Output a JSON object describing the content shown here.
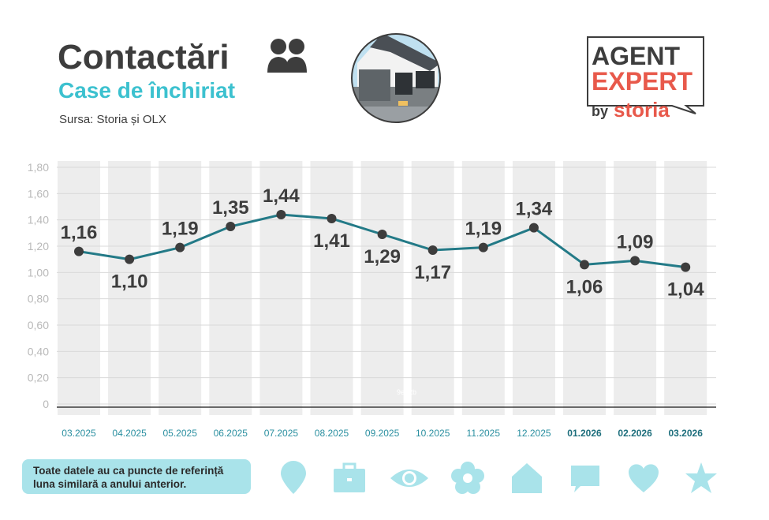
{
  "header": {
    "title": "Contactări",
    "subtitle": "Case de închiriat",
    "source": "Sursa: Storia și OLX"
  },
  "logo": {
    "line1": "AGENT",
    "line2": "EXPERT",
    "by": "by",
    "brand": "storia"
  },
  "note": "Toate datele au ca puncte de referință luna similară a anului anterior.",
  "watermark": "9e. 2b",
  "colors": {
    "title": "#3d3d3d",
    "subtitle": "#3cc1cf",
    "line": "#237a87",
    "dot": "#3d3d3d",
    "band": "#ededed",
    "axis_label": "#b9b9b9",
    "month_label": "#2a8fa0",
    "icon": "#a9e3ea",
    "logo_accent": "#e8594b"
  },
  "icons": [
    "location-pin-icon",
    "briefcase-icon",
    "eye-icon",
    "flower-icon",
    "house-icon",
    "chat-bubble-icon",
    "heart-icon",
    "star-icon"
  ],
  "chart_data": {
    "type": "line",
    "categories": [
      "03.2025",
      "04.2025",
      "05.2025",
      "06.2025",
      "07.2025",
      "08.2025",
      "09.2025",
      "10.2025",
      "11.2025",
      "12.2025",
      "01.2026",
      "02.2026",
      "03.2026"
    ],
    "bold_categories": [
      "01.2026",
      "02.2026",
      "03.2026"
    ],
    "values": [
      1.16,
      1.1,
      1.19,
      1.35,
      1.44,
      1.41,
      1.29,
      1.17,
      1.19,
      1.34,
      1.06,
      1.09,
      1.04
    ],
    "value_labels": [
      "1,16",
      "1,10",
      "1,19",
      "1,35",
      "1,44",
      "1,41",
      "1,29",
      "1,17",
      "1,19",
      "1,34",
      "1,06",
      "1,09",
      "1,04"
    ],
    "label_positions": [
      "above",
      "below",
      "above",
      "above",
      "above",
      "below",
      "below",
      "below",
      "above",
      "above",
      "below",
      "above",
      "below"
    ],
    "y_ticks": [
      0,
      0.2,
      0.4,
      0.6,
      0.8,
      1.0,
      1.2,
      1.4,
      1.6,
      1.8
    ],
    "y_tick_labels": [
      "0",
      "0,20",
      "0,40",
      "0,60",
      "0,80",
      "1,00",
      "1,20",
      "1,40",
      "1,60",
      "1,80"
    ],
    "ylim": [
      0,
      1.8
    ],
    "grid": true,
    "title": "Contactări",
    "xlabel": "",
    "ylabel": ""
  }
}
